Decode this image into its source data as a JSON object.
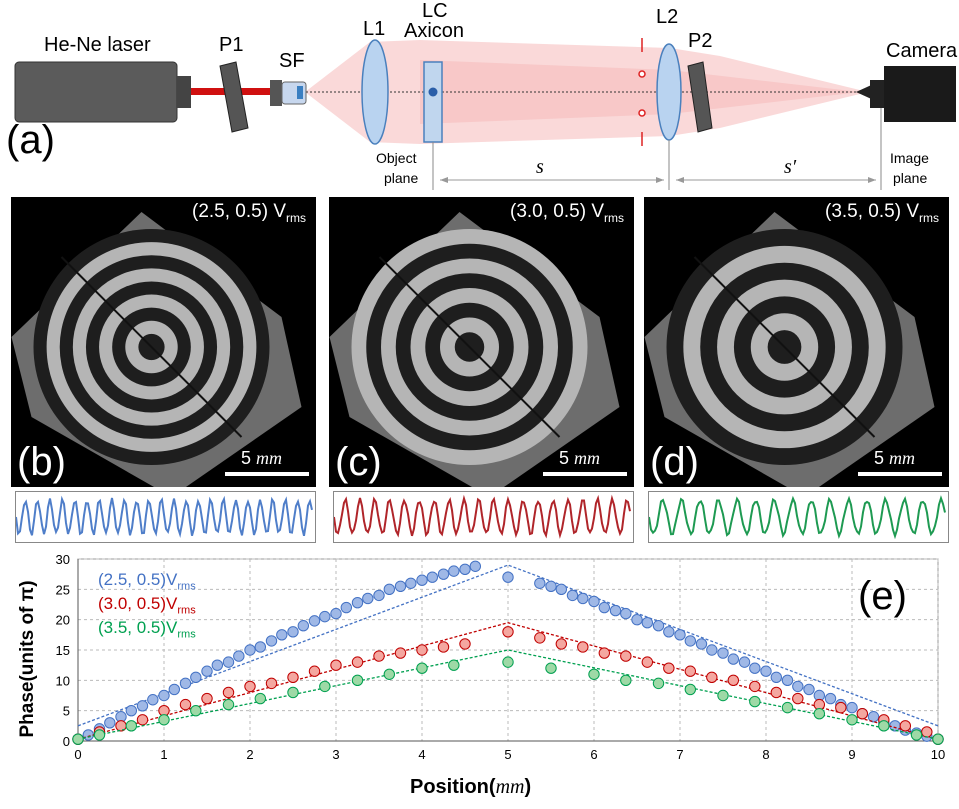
{
  "setup": {
    "laser_label": "He-Ne laser",
    "p1_label": "P1",
    "sf_label": "SF",
    "l1_label": "L1",
    "lc_label": "LC",
    "axicon_label": "Axicon",
    "l2_label": "L2",
    "p2_label": "P2",
    "camera_label": "Camera",
    "panel_letter": "(a)",
    "object_plane_line1": "Object",
    "object_plane_line2": "plane",
    "image_plane_line1": "Image",
    "image_plane_line2": "plane",
    "s_label": "s",
    "s_prime_label": "s′"
  },
  "images": [
    {
      "letter": "(b)",
      "voltage": "(2.5, 0.5) V",
      "sub": "rms",
      "scale": "5 ",
      "scale_unit": "mm",
      "profile_color": "#4f7ec9"
    },
    {
      "letter": "(c)",
      "voltage": "(3.0,  0.5) V",
      "sub": "rms",
      "scale": "5 ",
      "scale_unit": "mm",
      "profile_color": "#b0252a"
    },
    {
      "letter": "(d)",
      "voltage": "(3.5, 0.5) V",
      "sub": "rms",
      "scale": "5 ",
      "scale_unit": "mm",
      "profile_color": "#1e9a52"
    }
  ],
  "chart_data": {
    "type": "scatter",
    "panel_letter": "(e)",
    "xlabel": "Position",
    "xlabel_unit": "mm",
    "ylabel": "Phase(units of π)",
    "xlim": [
      0,
      10
    ],
    "ylim": [
      0,
      30
    ],
    "xticks": [
      "0",
      "1",
      "2",
      "3",
      "4",
      "5",
      "6",
      "7",
      "8",
      "9",
      "10"
    ],
    "yticks": [
      "0",
      "5",
      "10",
      "15",
      "20",
      "25",
      "30"
    ],
    "grid": true,
    "legend_position": "top-left",
    "series": [
      {
        "name": "(2.5, 0.5)V",
        "name_sub": "rms",
        "color": "#4472c4",
        "fill": "#9fb8e6",
        "x": [
          0,
          0.12,
          0.25,
          0.37,
          0.5,
          0.62,
          0.75,
          0.87,
          1.0,
          1.12,
          1.25,
          1.37,
          1.5,
          1.62,
          1.75,
          1.87,
          2.0,
          2.12,
          2.25,
          2.37,
          2.5,
          2.62,
          2.75,
          2.87,
          3.0,
          3.12,
          3.25,
          3.37,
          3.5,
          3.62,
          3.75,
          3.87,
          4.0,
          4.12,
          4.25,
          4.37,
          4.5,
          4.62,
          5.0,
          5.37,
          5.5,
          5.62,
          5.75,
          5.87,
          6.0,
          6.12,
          6.25,
          6.37,
          6.5,
          6.62,
          6.75,
          6.87,
          7.0,
          7.12,
          7.25,
          7.37,
          7.5,
          7.62,
          7.75,
          7.87,
          8.0,
          8.12,
          8.25,
          8.37,
          8.5,
          8.62,
          8.75,
          8.87,
          9.0,
          9.12,
          9.25,
          9.37,
          9.5,
          9.62,
          9.75,
          9.87,
          10.0
        ],
        "y": [
          0.3,
          1.0,
          2.0,
          3.0,
          4.0,
          5.0,
          5.8,
          6.8,
          7.5,
          8.5,
          9.5,
          10.5,
          11.5,
          12.5,
          13.0,
          14.0,
          15.0,
          15.5,
          16.5,
          17.5,
          18.0,
          19.0,
          19.8,
          20.5,
          21.0,
          22.0,
          22.8,
          23.5,
          24.0,
          25.0,
          25.5,
          26.0,
          26.5,
          27.0,
          27.5,
          28.0,
          28.3,
          28.8,
          27.0,
          26.0,
          25.5,
          25.0,
          24.0,
          23.5,
          23.0,
          22.0,
          21.5,
          21.0,
          20.0,
          19.5,
          19.0,
          18.0,
          17.5,
          16.5,
          16.0,
          15.0,
          14.5,
          13.5,
          13.0,
          12.0,
          11.5,
          10.5,
          10.0,
          9.0,
          8.5,
          7.5,
          7.0,
          6.0,
          5.5,
          4.5,
          4.0,
          3.0,
          2.5,
          1.8,
          1.3,
          0.8,
          0.3
        ],
        "fit": [
          [
            0,
            2.5
          ],
          [
            5,
            29
          ],
          [
            10,
            2.5
          ]
        ]
      },
      {
        "name": "(3.0, 0.5)V",
        "name_sub": "rms",
        "color": "#c00000",
        "fill": "#f4a7a0",
        "x": [
          0,
          0.25,
          0.5,
          0.75,
          1.0,
          1.25,
          1.5,
          1.75,
          2.0,
          2.25,
          2.5,
          2.75,
          3.0,
          3.25,
          3.5,
          3.75,
          4.0,
          4.25,
          4.5,
          5.0,
          5.37,
          5.62,
          5.87,
          6.12,
          6.37,
          6.62,
          6.87,
          7.12,
          7.37,
          7.62,
          7.87,
          8.12,
          8.37,
          8.62,
          8.87,
          9.12,
          9.37,
          9.62,
          9.87,
          10.0
        ],
        "y": [
          0.3,
          1.5,
          2.5,
          3.5,
          5.0,
          6.0,
          7.0,
          8.0,
          9.0,
          9.5,
          10.5,
          11.5,
          12.5,
          13.0,
          14.0,
          14.5,
          15.0,
          15.5,
          16.0,
          18.0,
          17.0,
          16.0,
          15.5,
          14.5,
          14.0,
          13.0,
          12.0,
          11.5,
          10.5,
          10.0,
          9.0,
          8.0,
          7.0,
          6.0,
          5.5,
          4.5,
          3.5,
          2.5,
          1.5,
          0.3
        ],
        "fit": [
          [
            0,
            0.3
          ],
          [
            5,
            19.5
          ],
          [
            10,
            0.3
          ]
        ]
      },
      {
        "name": "(3.5, 0.5)V",
        "name_sub": "rms",
        "color": "#00a050",
        "fill": "#9ed9a6",
        "x": [
          0,
          0.25,
          0.62,
          1.0,
          1.37,
          1.75,
          2.12,
          2.5,
          2.87,
          3.25,
          3.62,
          4.0,
          4.37,
          5.0,
          5.5,
          6.0,
          6.37,
          6.75,
          7.12,
          7.5,
          7.87,
          8.25,
          8.62,
          9.0,
          9.37,
          9.75,
          10.0
        ],
        "y": [
          0.3,
          1.0,
          2.5,
          3.5,
          5.0,
          6.0,
          7.0,
          8.0,
          9.0,
          10.0,
          11.0,
          12.0,
          12.5,
          13.0,
          12.0,
          11.0,
          10.0,
          9.5,
          8.5,
          7.5,
          6.5,
          5.5,
          4.5,
          3.5,
          2.5,
          1.0,
          0.3
        ],
        "fit": [
          [
            0,
            0.3
          ],
          [
            5,
            15
          ],
          [
            10,
            0.3
          ]
        ]
      }
    ]
  }
}
